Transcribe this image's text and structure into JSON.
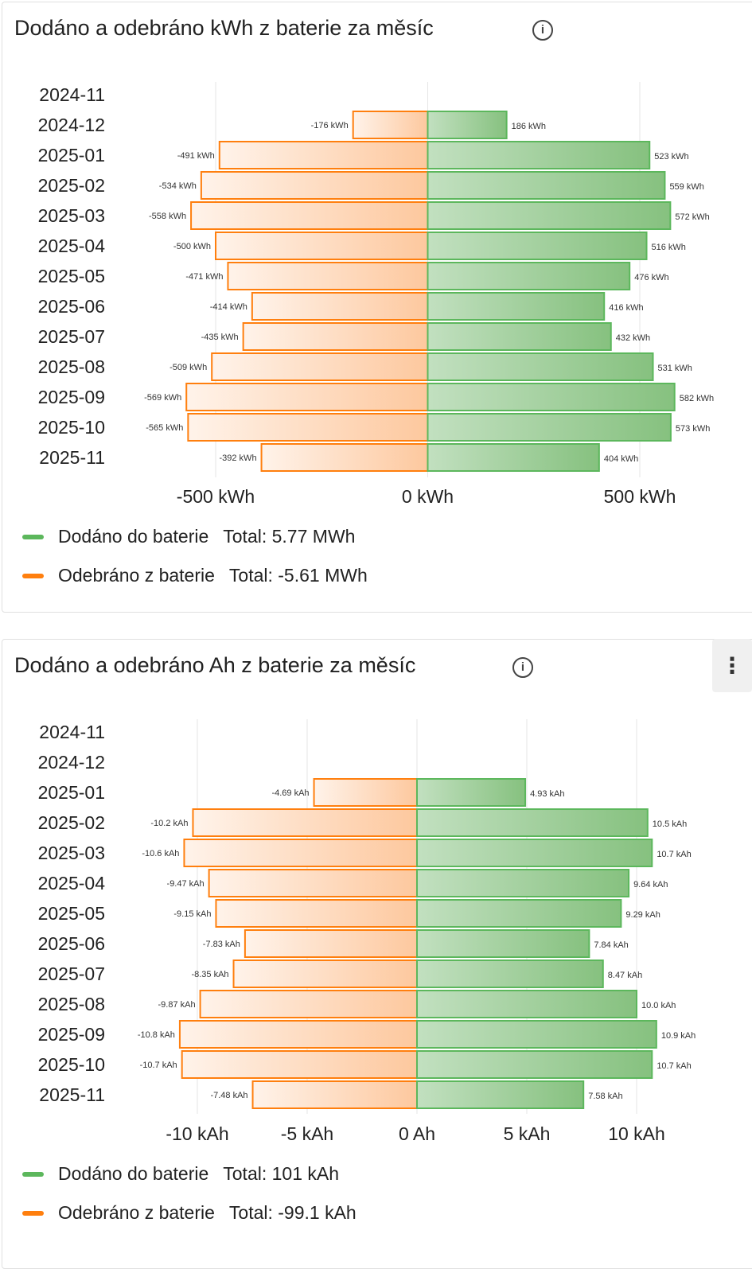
{
  "cards": [
    {
      "title": "Dodáno a odebráno kWh z baterie za měsíc",
      "info_icon": "info-circle-icon",
      "legend": [
        {
          "label": "Dodáno do baterie",
          "total": "Total: 5.77 MWh",
          "color": "#5cb75c"
        },
        {
          "label": "Odebráno z baterie",
          "total": "Total: -5.61 MWh",
          "color": "#ff7f0e"
        }
      ]
    },
    {
      "title": "Dodáno a odebráno Ah z baterie za měsíc",
      "info_icon": "info-circle-icon",
      "more_icon": "more-vertical-icon",
      "legend": [
        {
          "label": "Dodáno do baterie",
          "total": "Total: 101 kAh",
          "color": "#5cb75c"
        },
        {
          "label": "Odebráno z baterie",
          "total": "Total: -99.1 kAh",
          "color": "#ff7f0e"
        }
      ]
    }
  ],
  "chart_data": [
    {
      "type": "bar",
      "orientation": "horizontal",
      "unit": "kWh",
      "categories": [
        "2024-11",
        "2024-12",
        "2025-01",
        "2025-02",
        "2025-03",
        "2025-04",
        "2025-05",
        "2025-06",
        "2025-07",
        "2025-08",
        "2025-09",
        "2025-10",
        "2025-11"
      ],
      "xlim": [
        -500,
        500
      ],
      "xticks": [
        -500,
        0,
        500
      ],
      "xtick_labels": [
        "-500 kWh",
        "0 kWh",
        "500 kWh"
      ],
      "grid": true,
      "legend_position": "bottom",
      "series": [
        {
          "name": "Dodáno do baterie",
          "color": "#5cb75c",
          "values": [
            null,
            186,
            523,
            559,
            572,
            516,
            476,
            416,
            432,
            531,
            582,
            573,
            404
          ],
          "labels": [
            null,
            "186 kWh",
            "523 kWh",
            "559 kWh",
            "572 kWh",
            "516 kWh",
            "476 kWh",
            "416 kWh",
            "432 kWh",
            "531 kWh",
            "582 kWh",
            "573 kWh",
            "404 kWh"
          ]
        },
        {
          "name": "Odebráno z baterie",
          "color": "#ff7f0e",
          "values": [
            null,
            -176,
            -491,
            -534,
            -558,
            -500,
            -471,
            -414,
            -435,
            -509,
            -569,
            -565,
            -392
          ],
          "labels": [
            null,
            "-176 kWh",
            "-491 kWh",
            "-534 kWh",
            "-558 kWh",
            "-500 kWh",
            "-471 kWh",
            "-414 kWh",
            "-435 kWh",
            "-509 kWh",
            "-569 kWh",
            "-565 kWh",
            "-392 kWh"
          ]
        }
      ]
    },
    {
      "type": "bar",
      "orientation": "horizontal",
      "unit": "kAh",
      "categories": [
        "2024-11",
        "2024-12",
        "2025-01",
        "2025-02",
        "2025-03",
        "2025-04",
        "2025-05",
        "2025-06",
        "2025-07",
        "2025-08",
        "2025-09",
        "2025-10",
        "2025-11"
      ],
      "xlim": [
        -10,
        10
      ],
      "xticks": [
        -10,
        -5,
        0,
        5,
        10
      ],
      "xtick_labels": [
        "-10 kAh",
        "-5 kAh",
        "0 Ah",
        "5 kAh",
        "10 kAh"
      ],
      "grid": true,
      "legend_position": "bottom",
      "series": [
        {
          "name": "Dodáno do baterie",
          "color": "#5cb75c",
          "values": [
            null,
            null,
            4.93,
            10.5,
            10.7,
            9.64,
            9.29,
            7.84,
            8.47,
            10.0,
            10.9,
            10.7,
            7.58
          ],
          "labels": [
            null,
            null,
            "4.93 kAh",
            "10.5 kAh",
            "10.7 kAh",
            "9.64 kAh",
            "9.29 kAh",
            "7.84 kAh",
            "8.47 kAh",
            "10.0 kAh",
            "10.9 kAh",
            "10.7 kAh",
            "7.58 kAh"
          ]
        },
        {
          "name": "Odebráno z baterie",
          "color": "#ff7f0e",
          "values": [
            null,
            null,
            -4.69,
            -10.2,
            -10.6,
            -9.47,
            -9.15,
            -7.83,
            -8.35,
            -9.87,
            -10.8,
            -10.7,
            -7.48
          ],
          "labels": [
            null,
            null,
            "-4.69 kAh",
            "-10.2 kAh",
            "-10.6 kAh",
            "-9.47 kAh",
            "-9.15 kAh",
            "-7.83 kAh",
            "-8.35 kAh",
            "-9.87 kAh",
            "-10.8 kAh",
            "-10.7 kAh",
            "-7.48 kAh"
          ]
        }
      ]
    }
  ]
}
